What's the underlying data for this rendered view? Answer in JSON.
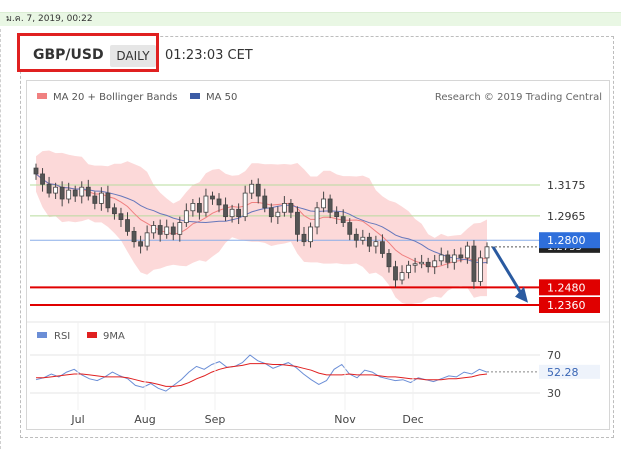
{
  "header": {
    "timestamp": "ม.ค. 7, 2019, 00:22",
    "pair": "GBP/USD",
    "period": "DAILY",
    "time": "01:23:03 CET"
  },
  "legend": {
    "ma20_label": "MA 20 + Bollinger Bands",
    "ma50_label": "MA 50",
    "credit": "Research © 2019 Trading Central",
    "rsi_label": "RSI",
    "ma9_label": "9MA"
  },
  "colors": {
    "bollinger_fill": "#fcd9d9",
    "ma20": "#f08080",
    "ma50": "#6677bb",
    "candle": "#444444",
    "support_red": "#e00000",
    "resistance_blue": "#2f6fdb",
    "green_level": "#7fc24f",
    "arrow": "#2a5aa0",
    "rsi": "#6b8ed6",
    "ma9": "#e02020"
  },
  "chart_data": {
    "type": "candlestick",
    "x_labels": [
      "Jul",
      "Aug",
      "Sep",
      "Nov",
      "Dec"
    ],
    "price_levels": [
      {
        "label": "1.3175",
        "value": 1.3175,
        "kind": "green"
      },
      {
        "label": "1.2965",
        "value": 1.2965,
        "kind": "green"
      },
      {
        "label": "1.2800",
        "value": 1.28,
        "kind": "blue"
      },
      {
        "label": "1.2755",
        "value": 1.2755,
        "kind": "current"
      },
      {
        "label": "1.2480",
        "value": 1.248,
        "kind": "red"
      },
      {
        "label": "1.2360",
        "value": 1.236,
        "kind": "red"
      }
    ],
    "rsi": {
      "levels": [
        "70",
        "30"
      ],
      "current": "52.28",
      "values": [
        44,
        46,
        50,
        47,
        52,
        55,
        49,
        45,
        43,
        47,
        52,
        48,
        45,
        38,
        36,
        40,
        35,
        32,
        38,
        44,
        52,
        58,
        55,
        60,
        63,
        57,
        58,
        62,
        70,
        64,
        61,
        56,
        59,
        62,
        57,
        50,
        44,
        39,
        43,
        55,
        60,
        50,
        46,
        54,
        52,
        47,
        45,
        43,
        44,
        41,
        46,
        44,
        42,
        45,
        48,
        47,
        52,
        50,
        55,
        52
      ],
      "ma9": [
        46,
        46,
        47,
        48,
        49,
        50,
        50,
        49,
        48,
        47,
        47,
        47,
        46,
        44,
        42,
        41,
        39,
        37,
        37,
        38,
        41,
        45,
        48,
        52,
        55,
        57,
        58,
        59,
        61,
        61,
        61,
        60,
        60,
        59,
        58,
        56,
        54,
        51,
        49,
        49,
        49,
        50,
        49,
        49,
        49,
        48,
        47,
        47,
        46,
        45,
        45,
        44,
        44,
        44,
        45,
        45,
        46,
        47,
        49,
        50
      ]
    },
    "closes": [
      1.325,
      1.318,
      1.312,
      1.316,
      1.308,
      1.314,
      1.31,
      1.316,
      1.31,
      1.305,
      1.312,
      1.302,
      1.298,
      1.294,
      1.286,
      1.279,
      1.276,
      1.285,
      1.29,
      1.284,
      1.289,
      1.284,
      1.292,
      1.3,
      1.305,
      1.299,
      1.31,
      1.308,
      1.304,
      1.296,
      1.301,
      1.296,
      1.312,
      1.318,
      1.31,
      1.302,
      1.296,
      1.299,
      1.305,
      1.299,
      1.284,
      1.279,
      1.289,
      1.302,
      1.308,
      1.299,
      1.296,
      1.292,
      1.284,
      1.28,
      1.282,
      1.276,
      1.279,
      1.271,
      1.262,
      1.253,
      1.258,
      1.263,
      1.264,
      1.265,
      1.262,
      1.266,
      1.27,
      1.265,
      1.27,
      1.268,
      1.276,
      1.252,
      1.268,
      1.2755
    ],
    "projection": {
      "from": 1.2755,
      "to": 1.2375
    }
  }
}
